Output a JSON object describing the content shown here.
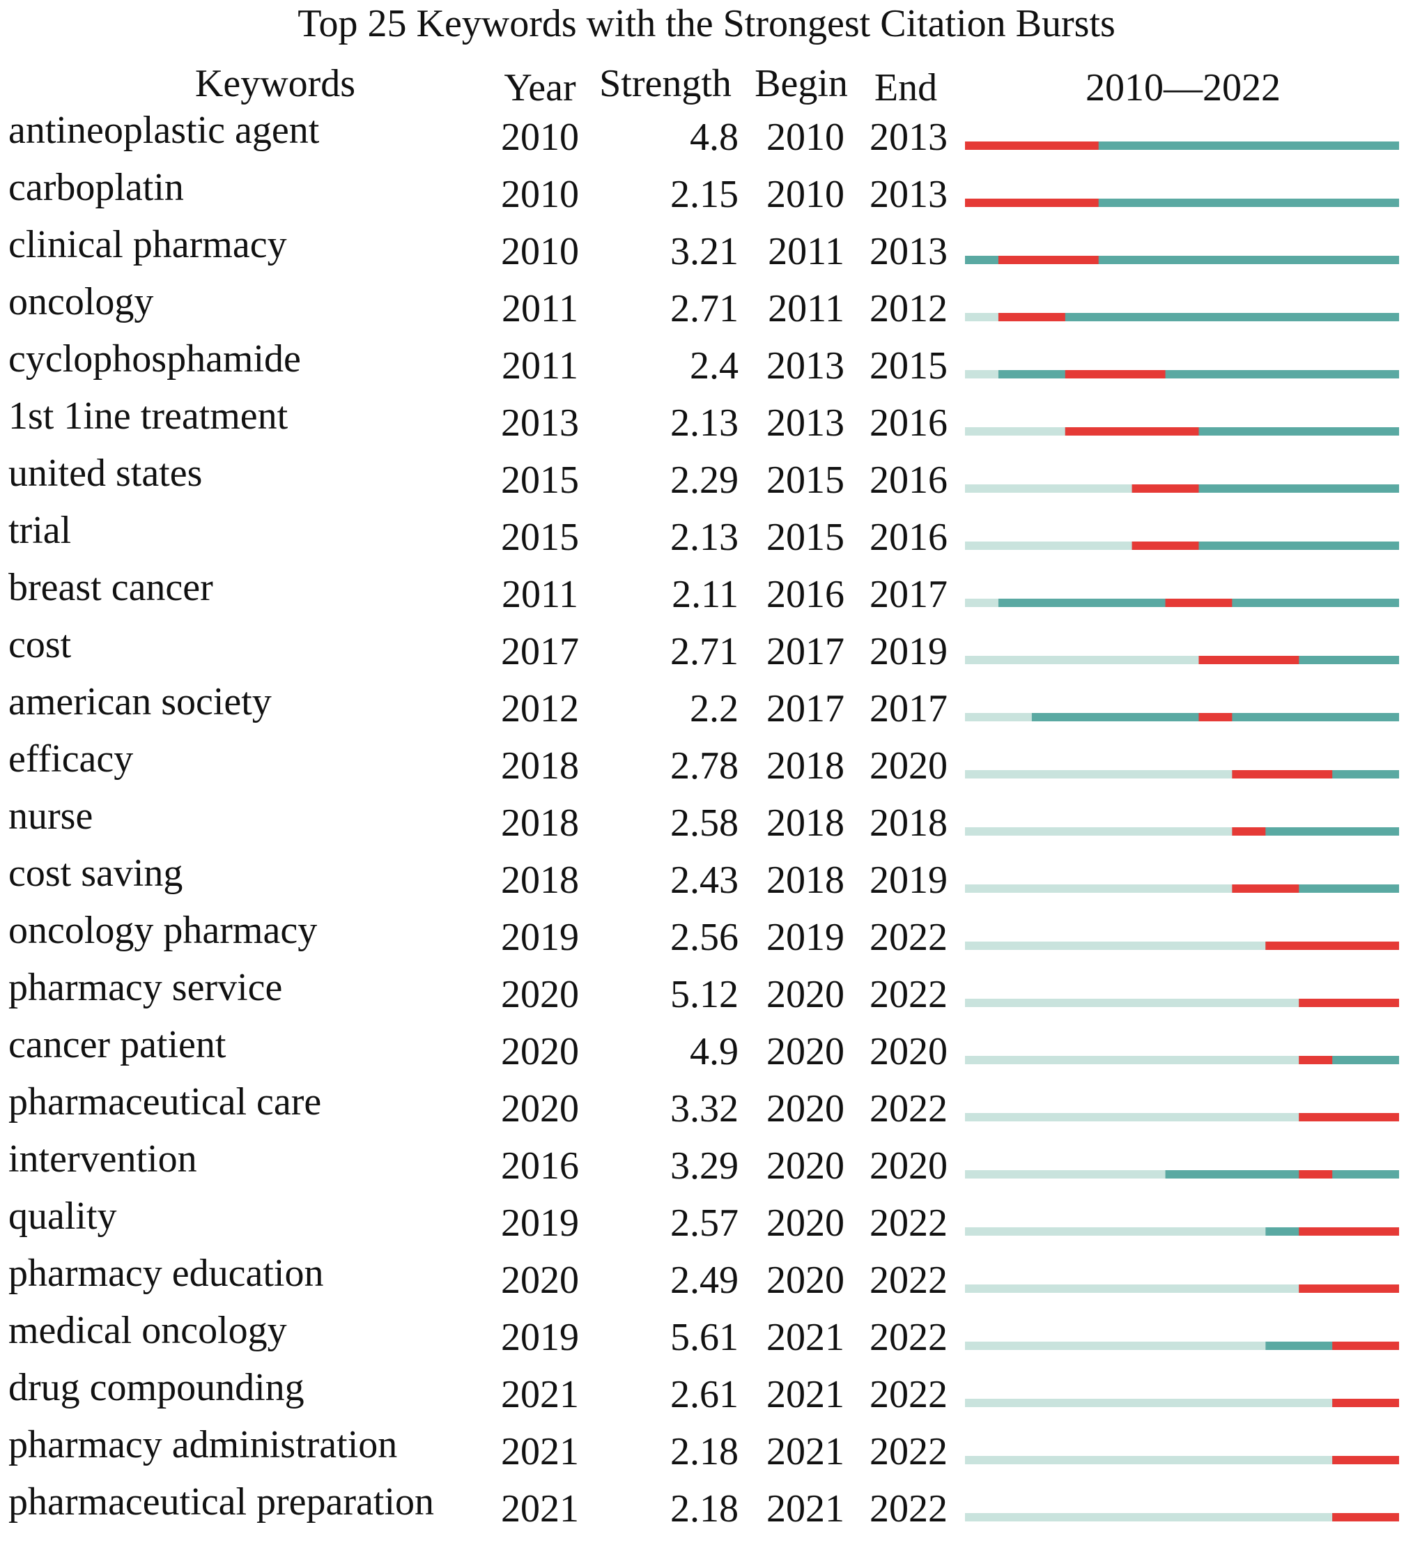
{
  "chart_data": {
    "type": "table",
    "title": "Top 25 Keywords with the Strongest Citation Bursts",
    "columns": [
      "Keywords",
      "Year",
      "Strength",
      "Begin",
      "End",
      "2010—2022"
    ],
    "timeline_range": [
      2010,
      2022
    ],
    "colors": {
      "burst": "#e53a36",
      "active": "#5aa9a2",
      "inactive": "#c9e3dd"
    },
    "rows": [
      {
        "keyword": "antineoplastic agent",
        "year": 2010,
        "strength": "4.8",
        "begin": 2010,
        "end": 2013
      },
      {
        "keyword": "carboplatin",
        "year": 2010,
        "strength": "2.15",
        "begin": 2010,
        "end": 2013
      },
      {
        "keyword": "clinical pharmacy",
        "year": 2010,
        "strength": "3.21",
        "begin": 2011,
        "end": 2013
      },
      {
        "keyword": "oncology",
        "year": 2011,
        "strength": "2.71",
        "begin": 2011,
        "end": 2012
      },
      {
        "keyword": "cyclophosphamide",
        "year": 2011,
        "strength": "2.4",
        "begin": 2013,
        "end": 2015
      },
      {
        "keyword": "1st 1ine treatment",
        "year": 2013,
        "strength": "2.13",
        "begin": 2013,
        "end": 2016
      },
      {
        "keyword": "united states",
        "year": 2015,
        "strength": "2.29",
        "begin": 2015,
        "end": 2016
      },
      {
        "keyword": "trial",
        "year": 2015,
        "strength": "2.13",
        "begin": 2015,
        "end": 2016
      },
      {
        "keyword": "breast cancer",
        "year": 2011,
        "strength": "2.11",
        "begin": 2016,
        "end": 2017
      },
      {
        "keyword": "cost",
        "year": 2017,
        "strength": "2.71",
        "begin": 2017,
        "end": 2019
      },
      {
        "keyword": "american society",
        "year": 2012,
        "strength": "2.2",
        "begin": 2017,
        "end": 2017
      },
      {
        "keyword": "efficacy",
        "year": 2018,
        "strength": "2.78",
        "begin": 2018,
        "end": 2020
      },
      {
        "keyword": "nurse",
        "year": 2018,
        "strength": "2.58",
        "begin": 2018,
        "end": 2018
      },
      {
        "keyword": "cost saving",
        "year": 2018,
        "strength": "2.43",
        "begin": 2018,
        "end": 2019
      },
      {
        "keyword": "oncology pharmacy",
        "year": 2019,
        "strength": "2.56",
        "begin": 2019,
        "end": 2022
      },
      {
        "keyword": "pharmacy service",
        "year": 2020,
        "strength": "5.12",
        "begin": 2020,
        "end": 2022
      },
      {
        "keyword": "cancer patient",
        "year": 2020,
        "strength": "4.9",
        "begin": 2020,
        "end": 2020
      },
      {
        "keyword": "pharmaceutical care",
        "year": 2020,
        "strength": "3.32",
        "begin": 2020,
        "end": 2022
      },
      {
        "keyword": "intervention",
        "year": 2016,
        "strength": "3.29",
        "begin": 2020,
        "end": 2020
      },
      {
        "keyword": "quality",
        "year": 2019,
        "strength": "2.57",
        "begin": 2020,
        "end": 2022
      },
      {
        "keyword": "pharmacy education",
        "year": 2020,
        "strength": "2.49",
        "begin": 2020,
        "end": 2022
      },
      {
        "keyword": "medical oncology",
        "year": 2019,
        "strength": "5.61",
        "begin": 2021,
        "end": 2022
      },
      {
        "keyword": "drug compounding",
        "year": 2021,
        "strength": "2.61",
        "begin": 2021,
        "end": 2022
      },
      {
        "keyword": "pharmacy administration",
        "year": 2021,
        "strength": "2.18",
        "begin": 2021,
        "end": 2022
      },
      {
        "keyword": "pharmaceutical preparation",
        "year": 2021,
        "strength": "2.18",
        "begin": 2021,
        "end": 2022
      }
    ]
  }
}
